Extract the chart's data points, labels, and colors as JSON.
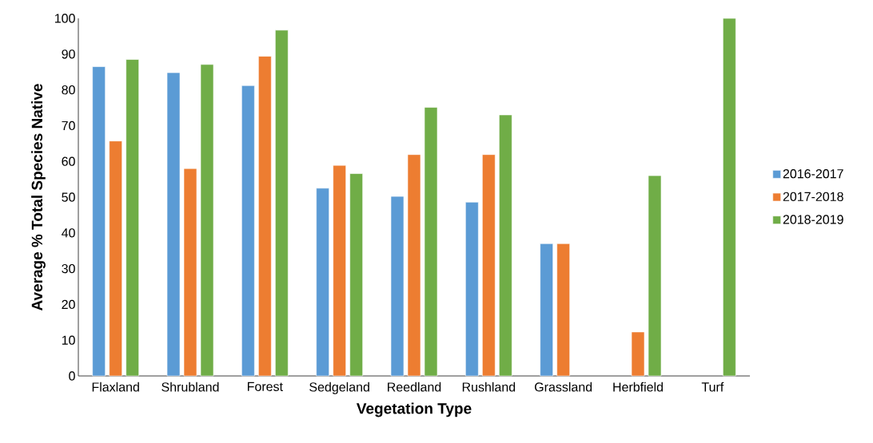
{
  "chart_data": {
    "type": "bar",
    "xlabel": "Vegetation Type",
    "ylabel": "Average % Total Species Native",
    "categories": [
      "Flaxland",
      "Shrubland",
      "Forest",
      "Sedgeland",
      "Reedland",
      "Rushland",
      "Grassland",
      "Herbfield",
      "Turf"
    ],
    "series": [
      {
        "name": "2016-2017",
        "color": "#5b9bd5",
        "values": [
          86.5,
          84.8,
          81.2,
          52.5,
          50.2,
          48.6,
          37,
          null,
          null
        ]
      },
      {
        "name": "2017-2018",
        "color": "#ed7d31",
        "values": [
          65.7,
          58,
          89.4,
          58.9,
          61.9,
          61.9,
          37,
          12.3,
          null
        ]
      },
      {
        "name": "2018-2019",
        "color": "#70ad47",
        "values": [
          88.5,
          87.1,
          96.7,
          56.6,
          75.1,
          73,
          null,
          56,
          100
        ]
      }
    ],
    "ylim": [
      0,
      100
    ],
    "yticks": [
      0,
      10,
      20,
      30,
      40,
      50,
      60,
      70,
      80,
      90,
      100
    ],
    "grid": false,
    "legend": "right"
  }
}
